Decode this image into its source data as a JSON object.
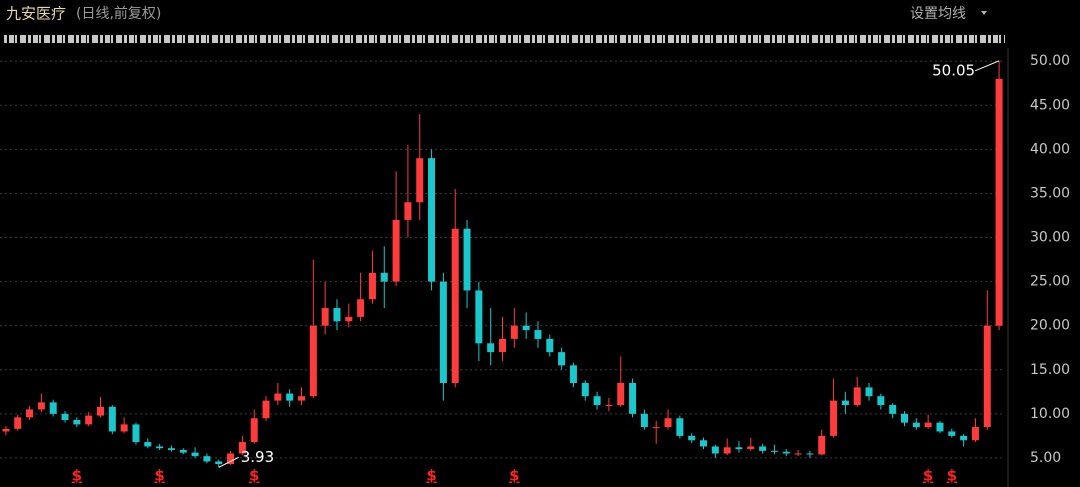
{
  "chart_data": {
    "type": "candlestick",
    "title": "九安医疗",
    "subtitle": "(日线,前复权)",
    "settings_label": "设置均线",
    "up_color": "#ff3b3b",
    "down_color": "#19c8cc",
    "ylim": [
      1.7,
      51.5
    ],
    "yticks": [
      {
        "value": 5,
        "label": "5.00"
      },
      {
        "value": 10,
        "label": "10.00"
      },
      {
        "value": 15,
        "label": "15.00"
      },
      {
        "value": 20,
        "label": "20.00"
      },
      {
        "value": 25,
        "label": "25.00"
      },
      {
        "value": 30,
        "label": "30.00"
      },
      {
        "value": 35,
        "label": "35.00"
      },
      {
        "value": 40,
        "label": "40.00"
      },
      {
        "value": 45,
        "label": "45.00"
      },
      {
        "value": 50,
        "label": "50.00"
      }
    ],
    "grid": true,
    "candles": [
      [
        8.0,
        8.6,
        7.6,
        8.3
      ],
      [
        8.3,
        9.9,
        8.1,
        9.6
      ],
      [
        9.6,
        10.9,
        9.3,
        10.5
      ],
      [
        10.5,
        12.3,
        10.2,
        11.3
      ],
      [
        11.3,
        11.6,
        9.7,
        10
      ],
      [
        10,
        10.3,
        9.0,
        9.3
      ],
      [
        9.3,
        9.6,
        8.5,
        8.8
      ],
      [
        8.8,
        10.2,
        8.6,
        9.8
      ],
      [
        9.8,
        11.9,
        9.6,
        10.8
      ],
      [
        10.8,
        11,
        7.7,
        8
      ],
      [
        8,
        9.6,
        7.8,
        8.8
      ],
      [
        8.8,
        9.0,
        6.5,
        6.8
      ],
      [
        6.8,
        7.2,
        6.1,
        6.3
      ],
      [
        6.3,
        6.6,
        5.9,
        6.1
      ],
      [
        6.1,
        6.4,
        5.7,
        5.9
      ],
      [
        5.9,
        6.1,
        5.4,
        5.6
      ],
      [
        5.6,
        6.2,
        5.0,
        5.2
      ],
      [
        5.2,
        5.5,
        4.4,
        4.6
      ],
      [
        4.6,
        4.8,
        3.93,
        4.3
      ],
      [
        4.3,
        5.8,
        4.2,
        5.5
      ],
      [
        5.5,
        7.5,
        5.3,
        6.8
      ],
      [
        6.8,
        10.5,
        6.6,
        9.5
      ],
      [
        9.5,
        12,
        9.2,
        11.5
      ],
      [
        11.5,
        13.5,
        11,
        12.3
      ],
      [
        12.3,
        12.8,
        10.8,
        11.5
      ],
      [
        11.5,
        13,
        11,
        12
      ],
      [
        12,
        27.5,
        11.8,
        20
      ],
      [
        20,
        25,
        19,
        22
      ],
      [
        22,
        23,
        19.5,
        20.5
      ],
      [
        20.5,
        22.5,
        19.8,
        21
      ],
      [
        21,
        26,
        20.5,
        23
      ],
      [
        23,
        28.5,
        22.5,
        26
      ],
      [
        26,
        29,
        22,
        25
      ],
      [
        25,
        37.5,
        24.5,
        32
      ],
      [
        32,
        40.5,
        30,
        34
      ],
      [
        34,
        44,
        32,
        39
      ],
      [
        39,
        40,
        24,
        25
      ],
      [
        25,
        26,
        11.5,
        13.5
      ],
      [
        13.5,
        35.5,
        13,
        31
      ],
      [
        31,
        32,
        22,
        24
      ],
      [
        24,
        25,
        16,
        18
      ],
      [
        18,
        22,
        15.5,
        17
      ],
      [
        17,
        21,
        16,
        18.5
      ],
      [
        18.5,
        22,
        17.5,
        20
      ],
      [
        20,
        21.5,
        18.5,
        19.5
      ],
      [
        19.5,
        20.5,
        17.5,
        18.5
      ],
      [
        18.5,
        19,
        16.5,
        17
      ],
      [
        17,
        17.5,
        15,
        15.5
      ],
      [
        15.5,
        15.8,
        13,
        13.5
      ],
      [
        13.5,
        13.8,
        11.5,
        12
      ],
      [
        12,
        12.5,
        10.5,
        11
      ],
      [
        11,
        11.8,
        10.3,
        11
      ],
      [
        11,
        16.5,
        10.8,
        13.5
      ],
      [
        13.5,
        14,
        9.6,
        10
      ],
      [
        10,
        10.5,
        8.2,
        8.5
      ],
      [
        8.5,
        9.2,
        6.6,
        8.5
      ],
      [
        8.5,
        10.5,
        8.2,
        9.5
      ],
      [
        9.5,
        9.8,
        7.2,
        7.5
      ],
      [
        7.5,
        7.8,
        6.7,
        7
      ],
      [
        7,
        7.3,
        6,
        6.3
      ],
      [
        6.3,
        6.5,
        5,
        5.5
      ],
      [
        5.5,
        7.2,
        5.3,
        6.2
      ],
      [
        6.2,
        6.9,
        5.6,
        6
      ],
      [
        6,
        7.3,
        5.8,
        6.3
      ],
      [
        6.3,
        6.6,
        5.5,
        5.8
      ],
      [
        5.8,
        6.5,
        5.4,
        5.7
      ],
      [
        5.7,
        6,
        5.2,
        5.5
      ],
      [
        5.5,
        5.9,
        5.2,
        5.5
      ],
      [
        5.5,
        5.8,
        5.0,
        5.4
      ],
      [
        5.4,
        8.2,
        5.3,
        7.5
      ],
      [
        7.5,
        14,
        7.3,
        11.5
      ],
      [
        11.5,
        12.5,
        10,
        11
      ],
      [
        11,
        14.2,
        10.8,
        13
      ],
      [
        13,
        13.5,
        11.5,
        12
      ],
      [
        12,
        12.3,
        10.5,
        11
      ],
      [
        11,
        11.2,
        9.5,
        10
      ],
      [
        10,
        10.3,
        8.6,
        9
      ],
      [
        9,
        9.5,
        8.2,
        8.5
      ],
      [
        8.5,
        9.9,
        8.3,
        9
      ],
      [
        9,
        9.2,
        7.8,
        8
      ],
      [
        8,
        8.3,
        7.3,
        7.5
      ],
      [
        7.5,
        7.7,
        6.3,
        7
      ],
      [
        7,
        9.5,
        6.8,
        8.5
      ],
      [
        8.5,
        24,
        8.2,
        20
      ],
      [
        20,
        50.05,
        19.5,
        48
      ]
    ],
    "annotations": [
      {
        "index": 84,
        "value": 50.05
      },
      {
        "index": 18,
        "value": 3.93
      }
    ],
    "events": [
      {
        "index": 6,
        "label": "$"
      },
      {
        "index": 13,
        "label": "$"
      },
      {
        "index": 21,
        "label": "$"
      },
      {
        "index": 36,
        "label": "$"
      },
      {
        "index": 43,
        "label": "$"
      },
      {
        "index": 78,
        "label": "$"
      },
      {
        "index": 80,
        "label": "$"
      }
    ]
  }
}
